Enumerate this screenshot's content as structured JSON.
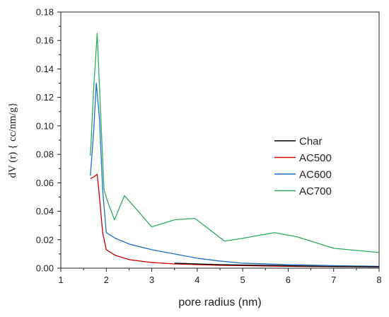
{
  "chart_data": {
    "type": "line",
    "title": "",
    "xlabel": "pore radius (nm)",
    "ylabel": "dV (r) { cc/nm/g}",
    "xlim": [
      1,
      8
    ],
    "ylim": [
      0,
      0.18
    ],
    "x_ticks": [
      "1",
      "2",
      "3",
      "4",
      "5",
      "6",
      "7",
      "8"
    ],
    "y_ticks": [
      "0.00",
      "0.02",
      "0.04",
      "0.06",
      "0.08",
      "0.10",
      "0.12",
      "0.14",
      "0.16",
      "0.18"
    ],
    "grid": false,
    "legend_position": "right",
    "series": [
      {
        "name": "Char",
        "color": "#000000",
        "points": [
          [
            3.5,
            0.0035
          ],
          [
            4.0,
            0.003
          ],
          [
            4.5,
            0.0025
          ],
          [
            5.0,
            0.0022
          ],
          [
            5.5,
            0.002
          ],
          [
            6.0,
            0.0017
          ],
          [
            6.5,
            0.0014
          ],
          [
            7.0,
            0.0012
          ],
          [
            7.5,
            0.001
          ],
          [
            8.0,
            0.0009
          ]
        ]
      },
      {
        "name": "AC500",
        "color": "#cc0000",
        "points": [
          [
            1.65,
            0.063
          ],
          [
            1.72,
            0.064
          ],
          [
            1.8,
            0.066
          ],
          [
            1.85,
            0.05
          ],
          [
            1.92,
            0.025
          ],
          [
            2.0,
            0.013
          ],
          [
            2.2,
            0.009
          ],
          [
            2.5,
            0.006
          ],
          [
            3.0,
            0.004
          ],
          [
            3.5,
            0.003
          ],
          [
            4.0,
            0.0025
          ],
          [
            4.5,
            0.002
          ],
          [
            5.0,
            0.0018
          ],
          [
            6.0,
            0.0013
          ],
          [
            7.0,
            0.0011
          ],
          [
            8.0,
            0.0009
          ]
        ]
      },
      {
        "name": "AC600",
        "color": "#1f6fc6",
        "points": [
          [
            1.65,
            0.065
          ],
          [
            1.72,
            0.095
          ],
          [
            1.78,
            0.13
          ],
          [
            1.85,
            0.105
          ],
          [
            1.92,
            0.055
          ],
          [
            2.0,
            0.025
          ],
          [
            2.2,
            0.021
          ],
          [
            2.5,
            0.017
          ],
          [
            3.0,
            0.013
          ],
          [
            3.5,
            0.01
          ],
          [
            4.0,
            0.007
          ],
          [
            4.5,
            0.005
          ],
          [
            5.0,
            0.0035
          ],
          [
            6.0,
            0.0025
          ],
          [
            7.0,
            0.0018
          ],
          [
            8.0,
            0.0013
          ]
        ]
      },
      {
        "name": "AC700",
        "color": "#2eaa60",
        "points": [
          [
            1.65,
            0.079
          ],
          [
            1.72,
            0.125
          ],
          [
            1.8,
            0.165
          ],
          [
            1.86,
            0.12
          ],
          [
            1.95,
            0.055
          ],
          [
            2.05,
            0.045
          ],
          [
            2.18,
            0.034
          ],
          [
            2.4,
            0.051
          ],
          [
            2.7,
            0.04
          ],
          [
            3.0,
            0.029
          ],
          [
            3.5,
            0.034
          ],
          [
            3.95,
            0.035
          ],
          [
            4.6,
            0.019
          ],
          [
            5.0,
            0.021
          ],
          [
            5.7,
            0.025
          ],
          [
            6.2,
            0.022
          ],
          [
            7.0,
            0.014
          ],
          [
            8.0,
            0.011
          ]
        ]
      }
    ]
  }
}
